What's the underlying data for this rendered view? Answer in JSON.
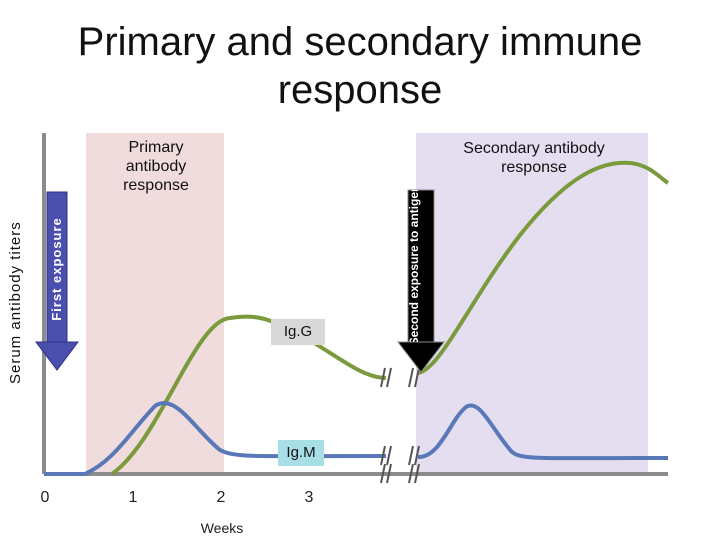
{
  "title": "Primary and secondary immune response",
  "primary_label": "Primary antibody response",
  "secondary_label": "Secondary antibody response",
  "y_axis_label": "Serum antibody titers",
  "first_exposure_label": "First exposure",
  "second_exposure_label": "Second exposure to antigen",
  "igg_label": "Ig.G",
  "igm_label": "Ig.M",
  "x_axis_label": "Weeks",
  "x_ticks": [
    "0",
    "1",
    "2",
    "3"
  ],
  "colors": {
    "primary_band": "#f0dcdc",
    "secondary_band": "#e4def0",
    "igg": "#7a9a3c",
    "igm": "#5878b8",
    "igg_tag": "#d8d8d8",
    "igm_tag": "#a8dfe6",
    "first_arrow": "#4a4fae",
    "second_arrow": "#000000",
    "axis": "#8c8c8c"
  }
}
